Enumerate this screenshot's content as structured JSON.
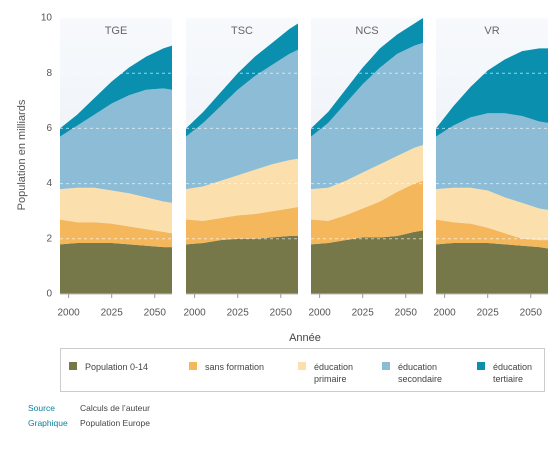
{
  "ylabel": "Population en milliards",
  "xlabel": "Année",
  "footer": {
    "source_label": "Source",
    "source": "Calculs de l’auteur",
    "graphic_label": "Graphique",
    "graphic": "Population Europe"
  },
  "chart_data": [
    {
      "type": "area",
      "stacked": true,
      "title": "TGE",
      "x": [
        1995,
        2005,
        2015,
        2025,
        2035,
        2045,
        2055,
        2060
      ],
      "xlim": [
        1995,
        2060
      ],
      "xticks": [
        2000,
        2025,
        2050
      ],
      "ylim": [
        0,
        10
      ],
      "yticks": [
        0,
        2,
        4,
        6,
        8,
        10
      ],
      "grid": true,
      "series": [
        {
          "name": "Population 0-14",
          "color": "#76784a",
          "values": [
            1.8,
            1.85,
            1.85,
            1.85,
            1.8,
            1.75,
            1.7,
            1.7
          ]
        },
        {
          "name": "sans formation",
          "color": "#f5b75c",
          "values": [
            0.9,
            0.75,
            0.75,
            0.7,
            0.65,
            0.6,
            0.55,
            0.5
          ]
        },
        {
          "name": "éducation primaire",
          "color": "#fbe0ad",
          "values": [
            1.1,
            1.25,
            1.25,
            1.2,
            1.2,
            1.15,
            1.1,
            1.1
          ]
        },
        {
          "name": "éducation secondaire",
          "color": "#8dbdd6",
          "values": [
            1.9,
            2.25,
            2.65,
            3.15,
            3.55,
            3.9,
            4.1,
            4.1
          ]
        },
        {
          "name": "éducation tertiaire",
          "color": "#0a8fae",
          "values": [
            0.3,
            0.4,
            0.6,
            0.8,
            1.0,
            1.2,
            1.45,
            1.6
          ]
        }
      ]
    },
    {
      "type": "area",
      "stacked": true,
      "title": "TSC",
      "x": [
        1995,
        2005,
        2015,
        2025,
        2035,
        2045,
        2055,
        2060
      ],
      "xlim": [
        1995,
        2060
      ],
      "xticks": [
        2000,
        2025,
        2050
      ],
      "ylim": [
        0,
        10
      ],
      "yticks": [
        0,
        2,
        4,
        6,
        8,
        10
      ],
      "grid": true,
      "series": [
        {
          "name": "Population 0-14",
          "color": "#76784a",
          "values": [
            1.8,
            1.85,
            1.95,
            2.0,
            2.0,
            2.05,
            2.1,
            2.1
          ]
        },
        {
          "name": "sans formation",
          "color": "#f5b75c",
          "values": [
            0.9,
            0.8,
            0.8,
            0.85,
            0.9,
            0.95,
            1.0,
            1.05
          ]
        },
        {
          "name": "éducation primaire",
          "color": "#fbe0ad",
          "values": [
            1.1,
            1.25,
            1.35,
            1.45,
            1.6,
            1.7,
            1.75,
            1.75
          ]
        },
        {
          "name": "éducation secondaire",
          "color": "#8dbdd6",
          "values": [
            1.9,
            2.3,
            2.7,
            3.1,
            3.4,
            3.6,
            3.85,
            3.95
          ]
        },
        {
          "name": "éducation tertiaire",
          "color": "#0a8fae",
          "values": [
            0.3,
            0.4,
            0.5,
            0.6,
            0.7,
            0.8,
            0.9,
            0.95
          ]
        }
      ]
    },
    {
      "type": "area",
      "stacked": true,
      "title": "NCS",
      "x": [
        1995,
        2005,
        2015,
        2025,
        2035,
        2045,
        2055,
        2060
      ],
      "xlim": [
        1995,
        2060
      ],
      "xticks": [
        2000,
        2025,
        2050
      ],
      "ylim": [
        0,
        10
      ],
      "yticks": [
        0,
        2,
        4,
        6,
        8,
        10
      ],
      "grid": true,
      "series": [
        {
          "name": "Population 0-14",
          "color": "#76784a",
          "values": [
            1.8,
            1.85,
            1.95,
            2.05,
            2.05,
            2.1,
            2.25,
            2.3
          ]
        },
        {
          "name": "sans formation",
          "color": "#f5b75c",
          "values": [
            0.9,
            0.8,
            0.9,
            1.05,
            1.3,
            1.6,
            1.75,
            1.8
          ]
        },
        {
          "name": "éducation primaire",
          "color": "#fbe0ad",
          "values": [
            1.1,
            1.2,
            1.25,
            1.3,
            1.35,
            1.3,
            1.3,
            1.3
          ]
        },
        {
          "name": "éducation secondaire",
          "color": "#8dbdd6",
          "values": [
            1.9,
            2.35,
            2.8,
            3.2,
            3.5,
            3.7,
            3.7,
            3.7
          ]
        },
        {
          "name": "éducation tertiaire",
          "color": "#0a8fae",
          "values": [
            0.3,
            0.4,
            0.5,
            0.6,
            0.7,
            0.7,
            0.8,
            0.9
          ]
        }
      ]
    },
    {
      "type": "area",
      "stacked": true,
      "title": "VR",
      "x": [
        1995,
        2005,
        2015,
        2025,
        2035,
        2045,
        2055,
        2060
      ],
      "xlim": [
        1995,
        2060
      ],
      "xticks": [
        2000,
        2025,
        2050
      ],
      "ylim": [
        0,
        10
      ],
      "yticks": [
        0,
        2,
        4,
        6,
        8,
        10
      ],
      "grid": true,
      "series": [
        {
          "name": "Population 0-14",
          "color": "#76784a",
          "values": [
            1.8,
            1.85,
            1.85,
            1.85,
            1.8,
            1.75,
            1.7,
            1.65
          ]
        },
        {
          "name": "sans formation",
          "color": "#f5b75c",
          "values": [
            0.9,
            0.75,
            0.7,
            0.55,
            0.4,
            0.25,
            0.25,
            0.3
          ]
        },
        {
          "name": "éducation primaire",
          "color": "#fbe0ad",
          "values": [
            1.1,
            1.25,
            1.3,
            1.35,
            1.3,
            1.3,
            1.15,
            1.1
          ]
        },
        {
          "name": "éducation secondaire",
          "color": "#8dbdd6",
          "values": [
            1.9,
            2.25,
            2.55,
            2.8,
            3.05,
            3.15,
            3.15,
            3.15
          ]
        },
        {
          "name": "éducation tertiaire",
          "color": "#0a8fae",
          "values": [
            0.3,
            0.7,
            1.1,
            1.55,
            1.95,
            2.35,
            2.65,
            2.7
          ]
        }
      ]
    }
  ]
}
